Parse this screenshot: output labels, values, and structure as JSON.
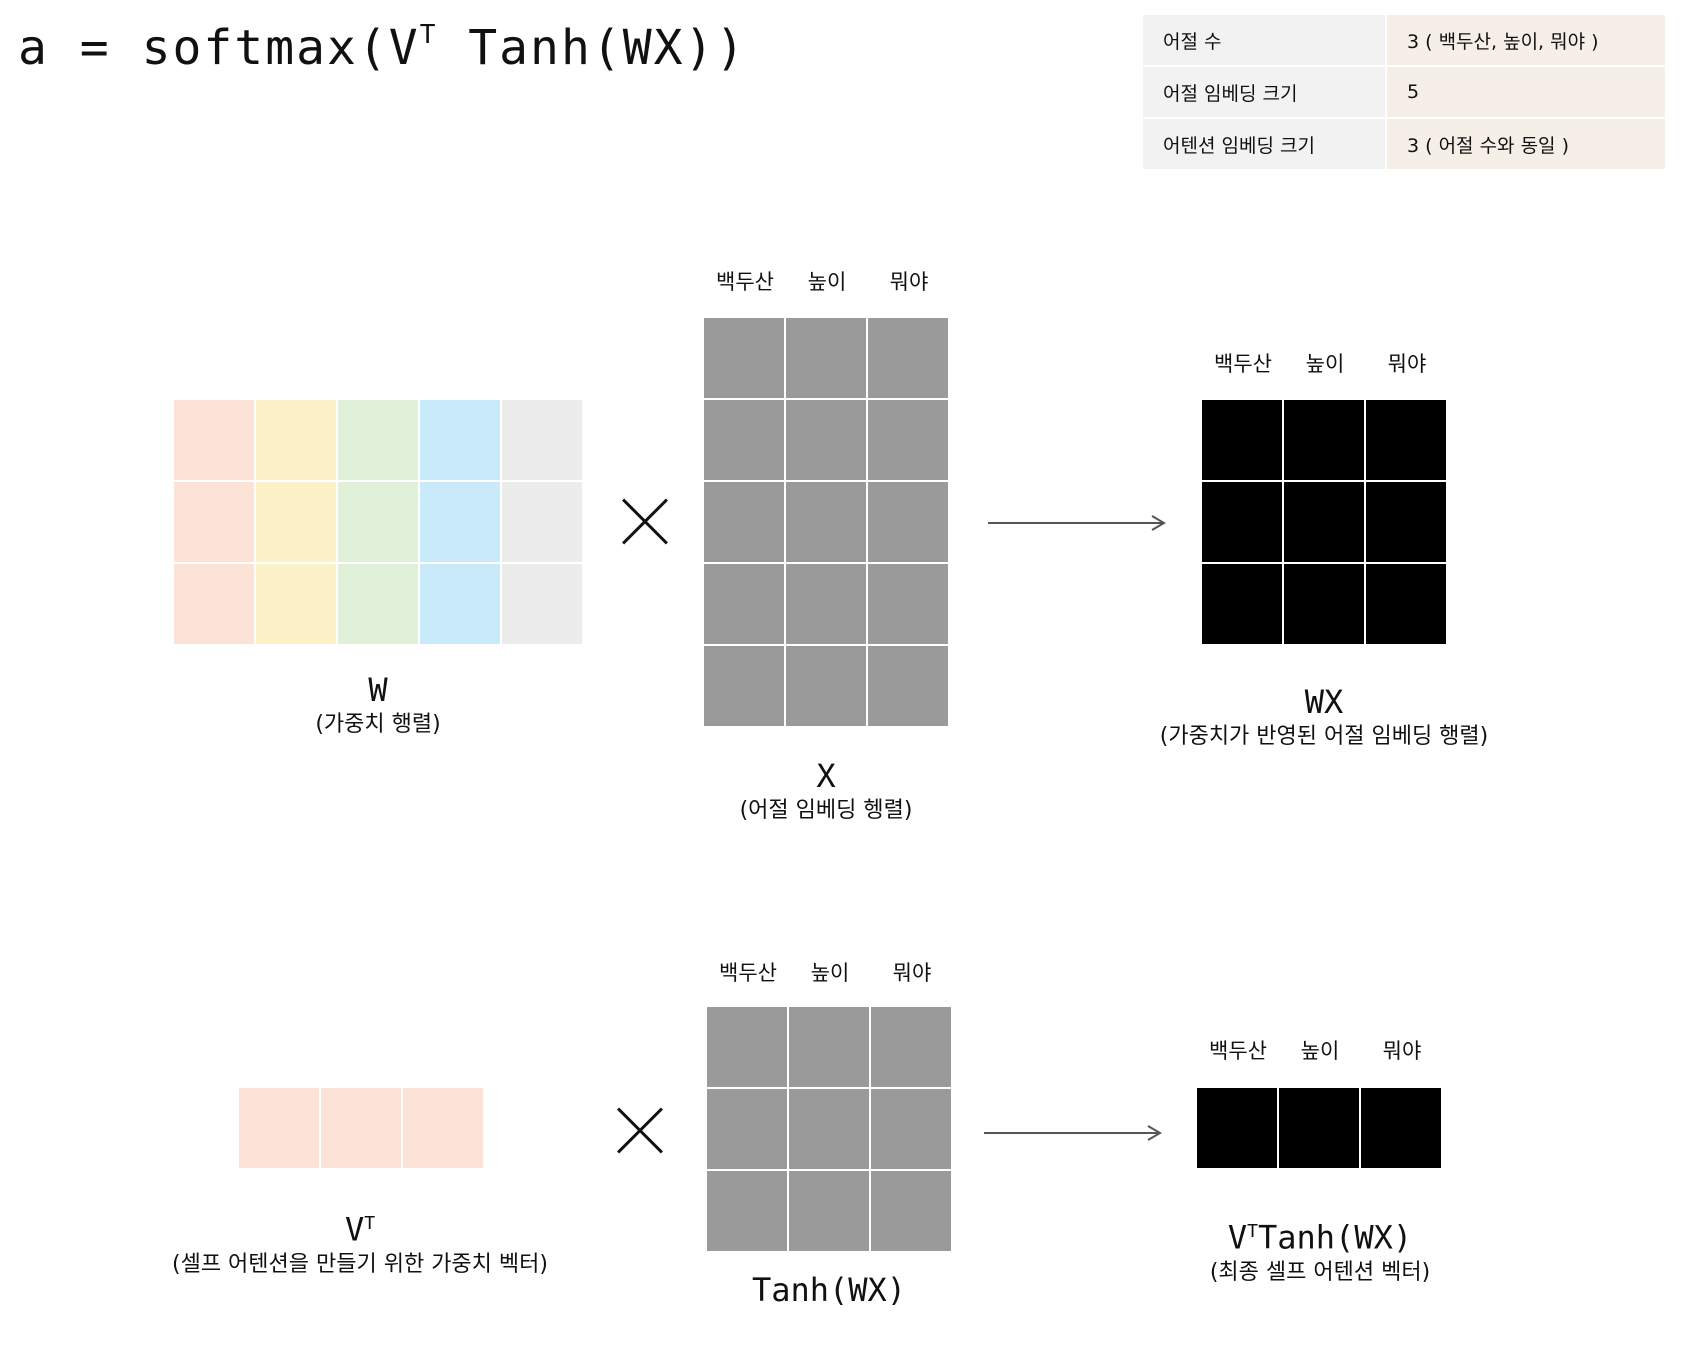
{
  "formula": {
    "prefix": "a = softmax(V",
    "sup": "T",
    "suffix": "Tanh(WX))"
  },
  "info_table": [
    {
      "key": "어절 수",
      "value": "3 ( 백두산, 높이, 뭐야 )"
    },
    {
      "key": "어절 임베딩 크기",
      "value": "5"
    },
    {
      "key": "어텐션 임베딩 크기",
      "value": "3 ( 어절 수와 동일 )"
    }
  ],
  "word_labels": [
    "백두산",
    "높이",
    "뭐야"
  ],
  "colors": {
    "w_columns": [
      "#fde3d6",
      "#fdf1c8",
      "#e0f0d9",
      "#c8eafb",
      "#ececec"
    ],
    "gray": "#9a9a9a",
    "black": "#000000",
    "vt": "#fde3d6",
    "table_key_bg": "#f2f2f2",
    "table_value_bg": "#f6efe8"
  },
  "top_row": {
    "W": {
      "symbol": "W",
      "desc": "(가중치 행렬)"
    },
    "X": {
      "symbol": "X",
      "desc": "(어절 임베딩 헹렬)"
    },
    "WX": {
      "symbol": "WX",
      "desc": "(가중치가 반영된 어절 임베딩 행렬)"
    }
  },
  "bottom_row": {
    "VT": {
      "symbol": "V",
      "sup": "T",
      "desc": "(셀프 어텐션을 만들기 위한 가중치 벡터)"
    },
    "TanhWX": {
      "symbol": "Tanh(WX)"
    },
    "result": {
      "symbol_prefix": "V",
      "sup": "T",
      "symbol_suffix": "Tanh(WX)",
      "desc": "(최종 셀프 어텐션 벡터)"
    }
  },
  "icons": {
    "multiply": "multiply-icon",
    "arrow": "right-arrow-icon"
  }
}
